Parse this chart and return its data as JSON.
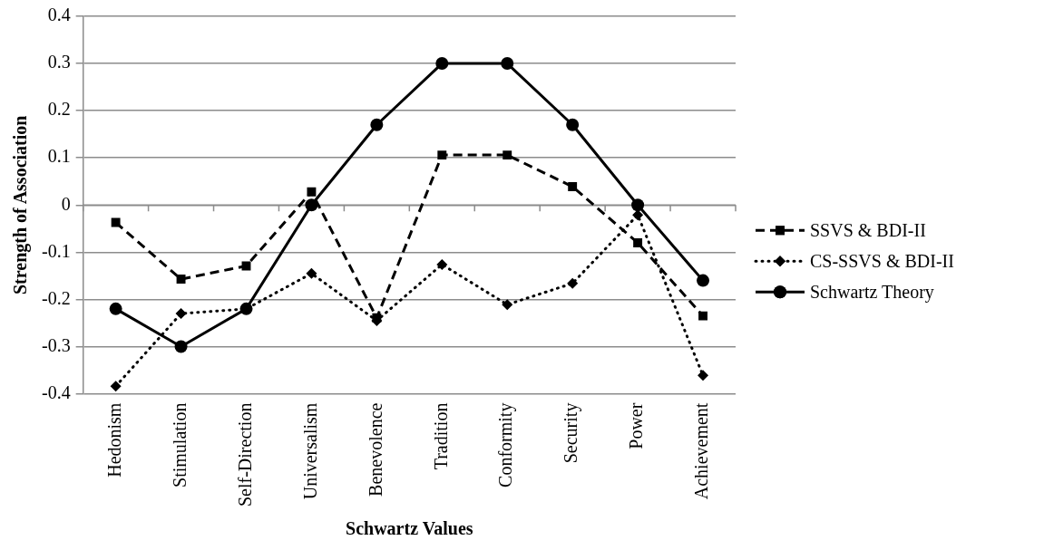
{
  "chart_data": {
    "type": "line",
    "xlabel": "Schwartz Values",
    "ylabel": "Strength of Association",
    "categories": [
      "Hedonism",
      "Stimulation",
      "Self-Direction",
      "Universalism",
      "Benevolence",
      "Tradition",
      "Conformity",
      "Security",
      "Power",
      "Achievement"
    ],
    "series": [
      {
        "name": "SSVS & BDI-II",
        "color": "#000000",
        "line_style": "dashed",
        "marker": "square",
        "values": [
          -0.037,
          -0.157,
          -0.129,
          0.028,
          -0.239,
          0.106,
          0.106,
          0.039,
          -0.08,
          -0.235
        ]
      },
      {
        "name": "CS-SSVS & BDI-II",
        "color": "#000000",
        "line_style": "dotted",
        "marker": "diamond",
        "values": [
          -0.384,
          -0.23,
          -0.22,
          -0.145,
          -0.245,
          -0.126,
          -0.211,
          -0.166,
          -0.021,
          -0.361
        ]
      },
      {
        "name": "Schwartz Theory",
        "color": "#000000",
        "line_style": "solid",
        "marker": "circle",
        "values": [
          -0.22,
          -0.3,
          -0.22,
          0,
          0.17,
          0.3,
          0.3,
          0.17,
          0,
          -0.16
        ]
      }
    ],
    "ylim": [
      -0.4,
      0.4
    ],
    "yticks": [
      -0.4,
      -0.3,
      -0.2,
      -0.1,
      0,
      0.1,
      0.2,
      0.3,
      0.4
    ],
    "grid": "y",
    "legend": "right"
  }
}
